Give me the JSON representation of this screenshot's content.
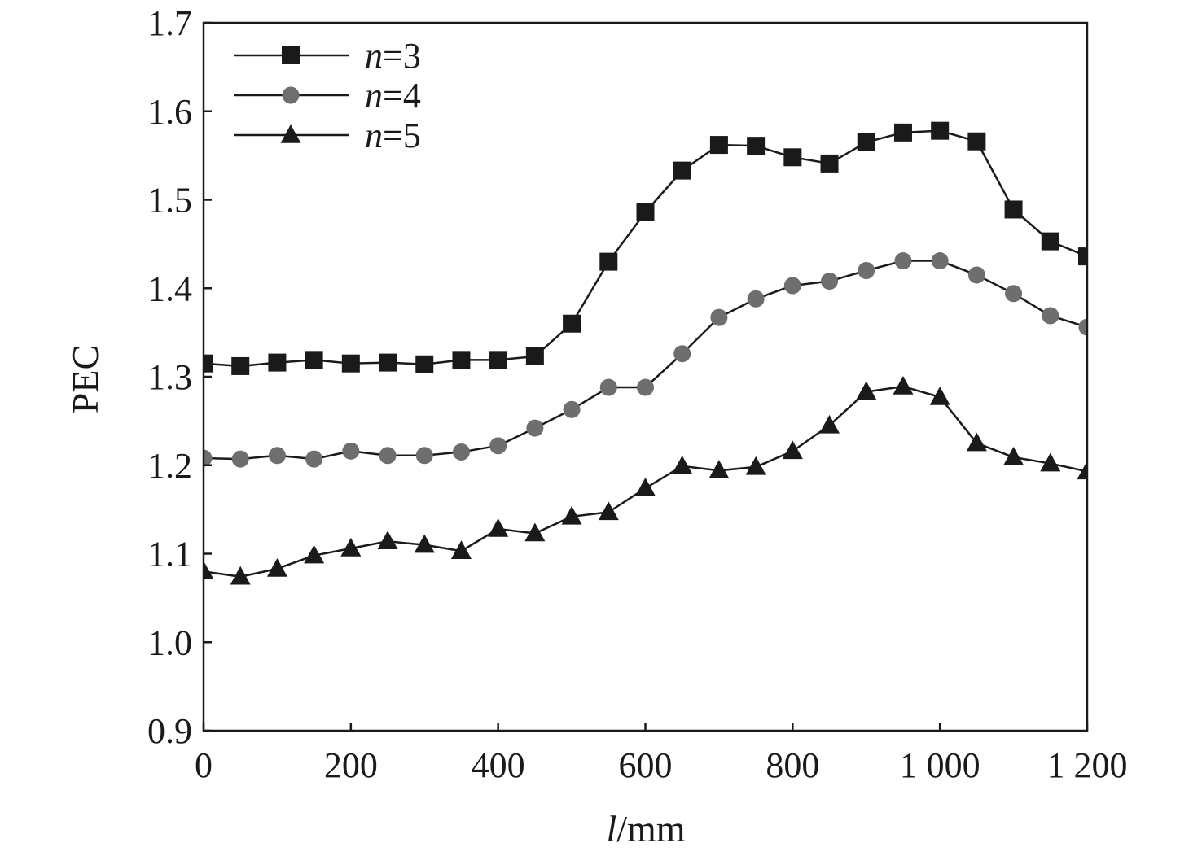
{
  "chart_data": {
    "type": "line",
    "title": "",
    "xlabel": {
      "italic": "l",
      "rest": "/mm"
    },
    "ylabel": "PEC",
    "xlim": [
      0,
      1200
    ],
    "ylim": [
      0.9,
      1.7
    ],
    "xticks": [
      0,
      200,
      400,
      600,
      800,
      1000,
      1200
    ],
    "xtick_labels": [
      "0",
      "200",
      "400",
      "600",
      "800",
      "1 000",
      "1 200"
    ],
    "yticks": [
      0.9,
      1.0,
      1.1,
      1.2,
      1.3,
      1.4,
      1.5,
      1.6,
      1.7
    ],
    "ytick_labels": [
      "0.9",
      "1.0",
      "1.1",
      "1.2",
      "1.3",
      "1.4",
      "1.5",
      "1.6",
      "1.7"
    ],
    "grid": false,
    "legend_position": "top-left",
    "x": [
      0,
      50,
      100,
      150,
      200,
      250,
      300,
      350,
      400,
      450,
      500,
      550,
      600,
      650,
      700,
      750,
      800,
      850,
      900,
      950,
      1000,
      1050,
      1100,
      1150,
      1200
    ],
    "series": [
      {
        "name": {
          "italic": "n",
          "rest": "=3"
        },
        "marker": "square",
        "color": "#1a1a1a",
        "values": [
          1.315,
          1.312,
          1.316,
          1.319,
          1.315,
          1.316,
          1.314,
          1.319,
          1.319,
          1.323,
          1.36,
          1.43,
          1.486,
          1.533,
          1.562,
          1.561,
          1.548,
          1.541,
          1.565,
          1.576,
          1.578,
          1.566,
          1.489,
          1.453,
          1.436
        ]
      },
      {
        "name": {
          "italic": "n",
          "rest": "=4"
        },
        "marker": "circle",
        "color": "#6e6e6e",
        "values": [
          1.208,
          1.207,
          1.211,
          1.207,
          1.216,
          1.211,
          1.211,
          1.215,
          1.222,
          1.242,
          1.263,
          1.288,
          1.288,
          1.326,
          1.367,
          1.388,
          1.403,
          1.408,
          1.42,
          1.431,
          1.431,
          1.415,
          1.394,
          1.369,
          1.356
        ]
      },
      {
        "name": {
          "italic": "n",
          "rest": "=5"
        },
        "marker": "triangle",
        "color": "#1a1a1a",
        "values": [
          1.08,
          1.074,
          1.083,
          1.098,
          1.106,
          1.114,
          1.11,
          1.103,
          1.128,
          1.123,
          1.142,
          1.147,
          1.174,
          1.199,
          1.194,
          1.198,
          1.216,
          1.245,
          1.283,
          1.289,
          1.277,
          1.225,
          1.209,
          1.202,
          1.193
        ]
      }
    ]
  }
}
